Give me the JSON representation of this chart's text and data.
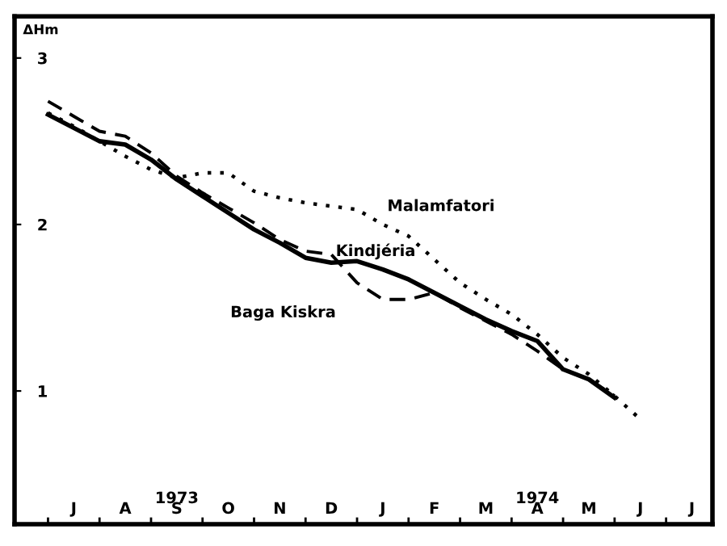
{
  "chart_data": {
    "type": "line",
    "ylabel": "ΔHm",
    "categories": [
      null,
      "J",
      null,
      "A",
      null,
      "S",
      null,
      "O",
      null,
      "N",
      null,
      "D",
      null,
      "J",
      null,
      "F",
      null,
      "M",
      null,
      "A",
      null,
      "M",
      null,
      "J",
      null,
      "J"
    ],
    "series": [
      {
        "name": "Malamfatori",
        "color": "#000000",
        "line_style": "dotted",
        "values": [
          2.67,
          2.59,
          2.5,
          2.41,
          2.33,
          2.28,
          2.31,
          2.31,
          2.2,
          2.16,
          2.13,
          2.11,
          2.09,
          2.0,
          1.93,
          1.79,
          1.65,
          1.55,
          1.46,
          1.34,
          1.2,
          1.1,
          0.97,
          0.83,
          null,
          null
        ]
      },
      {
        "name": "Kindjéria",
        "color": "#000000",
        "line_style": "solid",
        "values": [
          2.66,
          2.58,
          2.5,
          2.48,
          2.39,
          2.27,
          2.17,
          2.07,
          1.97,
          1.89,
          1.8,
          1.77,
          1.78,
          1.73,
          1.67,
          1.59,
          1.51,
          1.43,
          1.36,
          1.3,
          1.13,
          1.07,
          0.96,
          null,
          null,
          null
        ]
      },
      {
        "name": "Baga Kiskra",
        "color": "#000000",
        "line_style": "dashed",
        "values": [
          2.74,
          2.65,
          2.56,
          2.53,
          2.43,
          2.29,
          2.19,
          2.1,
          2.01,
          1.91,
          1.84,
          1.82,
          1.65,
          1.55,
          1.55,
          1.59,
          1.5,
          1.42,
          1.34,
          1.24,
          1.13,
          1.07,
          0.97,
          null,
          null,
          null
        ]
      }
    ],
    "annotations": [
      "1973",
      "1974"
    ],
    "ylim": [
      0.2,
      3.25
    ],
    "yticks": [
      1,
      2,
      3
    ],
    "grid": false,
    "legend": false,
    "marker": "none"
  }
}
